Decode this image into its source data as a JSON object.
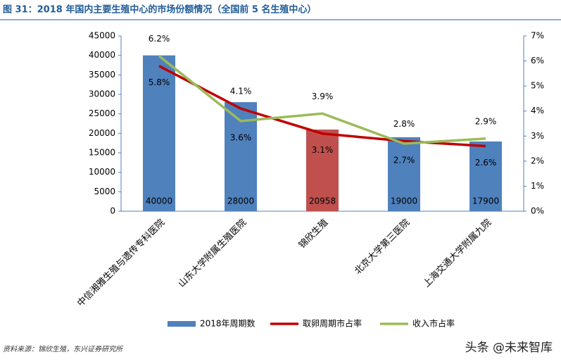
{
  "title": "图 31：2018 年国内主要生殖中心的市场份额情况（全国前 5 名生殖中心）",
  "source": "资料来源：锦欣生殖，东兴证券研究所",
  "watermark": "头条 @未来智库",
  "chart_data": {
    "type": "bar-line",
    "categories": [
      "中信湘雅生殖与遗传专科医院",
      "山东大学附属生殖医院",
      "锦欣生殖",
      "北京大学第三医院",
      "上海交通大学附属九院"
    ],
    "series": [
      {
        "name": "2018年周期数",
        "type": "bar",
        "colors": [
          "#4f81bd",
          "#4f81bd",
          "#c0504d",
          "#4f81bd",
          "#4f81bd"
        ],
        "values": [
          40000,
          28000,
          20958,
          19000,
          17900
        ]
      },
      {
        "name": "取卵周期市占率",
        "type": "line",
        "axis": "y2",
        "color": "#c00000",
        "values": [
          5.8,
          4.1,
          3.1,
          2.8,
          2.6
        ],
        "value_labels": [
          "5.8%",
          "4.1%",
          "3.1%",
          "2.8%",
          "2.6%"
        ]
      },
      {
        "name": "收入市占率",
        "type": "line",
        "axis": "y2",
        "color": "#9bbb59",
        "values": [
          6.2,
          3.6,
          3.9,
          2.7,
          2.9
        ],
        "value_labels": [
          "6.2%",
          "3.6%",
          "3.9%",
          "2.7%",
          "2.9%"
        ]
      }
    ],
    "ylim": [
      0,
      45000
    ],
    "yticks": [
      0,
      5000,
      10000,
      15000,
      20000,
      25000,
      30000,
      35000,
      40000,
      45000
    ],
    "y2lim": [
      0,
      7
    ],
    "y2ticks": [
      {
        "value": 0,
        "label": "0%"
      },
      {
        "value": 1,
        "label": "1%"
      },
      {
        "value": 2,
        "label": "2%"
      },
      {
        "value": 3,
        "label": "3%"
      },
      {
        "value": 4,
        "label": "4%"
      },
      {
        "value": 5,
        "label": "5%"
      },
      {
        "value": 6,
        "label": "6%"
      },
      {
        "value": 7,
        "label": "7%"
      }
    ],
    "legend": "bottom"
  }
}
